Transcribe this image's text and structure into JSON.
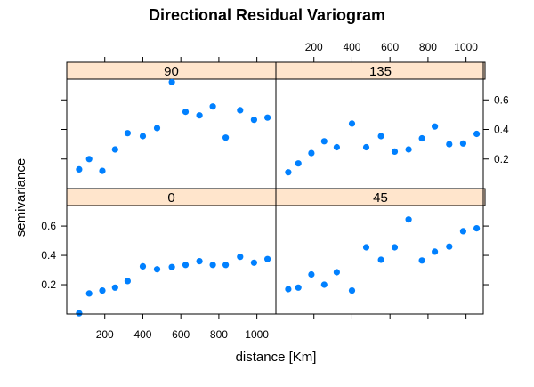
{
  "chart_data": {
    "type": "scatter",
    "title": "Directional Residual Variogram",
    "xlabel": "distance [Km]",
    "ylabel": "semivariance",
    "xlim": [
      0,
      1100
    ],
    "ylim": [
      0,
      0.74
    ],
    "x_ticks": [
      200,
      400,
      600,
      800,
      1000
    ],
    "y_ticks": [
      0.2,
      0.4,
      0.6
    ],
    "grid": false,
    "layout": "2x2 trellis panels with strip headers",
    "strip_fill": "#ffe5cc",
    "point_color": "#0080ff",
    "panels": [
      {
        "strip": "0",
        "x": [
          65,
          118,
          187,
          254,
          320,
          400,
          475,
          553,
          625,
          698,
          768,
          836,
          912,
          985,
          1056
        ],
        "y": [
          0.005,
          0.14,
          0.16,
          0.18,
          0.225,
          0.325,
          0.305,
          0.32,
          0.335,
          0.36,
          0.335,
          0.335,
          0.39,
          0.35,
          0.375
        ]
      },
      {
        "strip": "45",
        "x": [
          65,
          118,
          187,
          254,
          320,
          400,
          475,
          553,
          625,
          698,
          768,
          836,
          912,
          985,
          1056
        ],
        "y": [
          0.17,
          0.18,
          0.27,
          0.2,
          0.285,
          0.16,
          0.455,
          0.37,
          0.455,
          0.645,
          0.365,
          0.425,
          0.46,
          0.565,
          0.585
        ]
      },
      {
        "strip": "90",
        "x": [
          65,
          118,
          187,
          254,
          320,
          400,
          475,
          553,
          625,
          698,
          768,
          836,
          912,
          985,
          1056
        ],
        "y": [
          0.13,
          0.2,
          0.12,
          0.265,
          0.375,
          0.355,
          0.41,
          0.72,
          0.52,
          0.495,
          0.555,
          0.345,
          0.53,
          0.465,
          0.48
        ]
      },
      {
        "strip": "135",
        "x": [
          65,
          118,
          187,
          254,
          320,
          400,
          475,
          553,
          625,
          698,
          768,
          836,
          912,
          985,
          1056
        ],
        "y": [
          0.11,
          0.17,
          0.24,
          0.32,
          0.28,
          0.44,
          0.28,
          0.355,
          0.25,
          0.265,
          0.34,
          0.42,
          0.3,
          0.305,
          0.37
        ]
      }
    ]
  }
}
